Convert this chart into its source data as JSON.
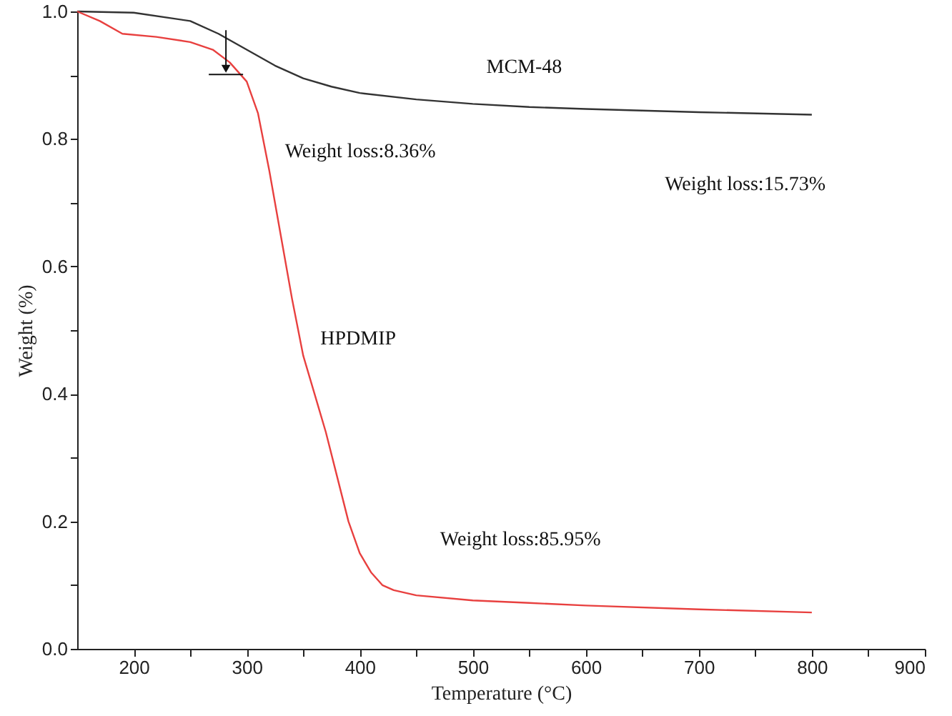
{
  "chart_data": {
    "type": "line",
    "xlabel": "Temperature (°C)",
    "ylabel": "Weight (%)",
    "xlim": [
      150,
      900
    ],
    "ylim": [
      0,
      1
    ],
    "xticks": [
      200,
      {
        "value": 250,
        "label": null
      },
      300,
      {
        "value": 350,
        "label": null
      },
      400,
      {
        "value": 450,
        "label": null
      },
      500,
      {
        "value": 550,
        "label": null
      },
      600,
      {
        "value": 650,
        "label": null
      },
      700,
      {
        "value": 750,
        "label": null
      },
      800,
      {
        "value": 850,
        "label": null
      },
      900
    ],
    "yticks": [
      {
        "value": 0,
        "label": "0.0"
      },
      {
        "value": 0.1,
        "label": null
      },
      0.2,
      {
        "value": 0.3,
        "label": null
      },
      0.4,
      {
        "value": 0.5,
        "label": null
      },
      0.6,
      {
        "value": 0.7,
        "label": null
      },
      0.8,
      {
        "value": 0.9,
        "label": null
      },
      {
        "value": 1,
        "label": "1.0"
      }
    ],
    "grid": false,
    "legend": false,
    "marker": "none",
    "line_style": "solid",
    "series": [
      {
        "name": "MCM-48",
        "color": "#333333",
        "x": [
          150,
          200,
          250,
          275,
          300,
          325,
          350,
          375,
          400,
          450,
          500,
          550,
          600,
          700,
          800
        ],
        "values": [
          1.0,
          0.998,
          0.985,
          0.965,
          0.94,
          0.915,
          0.895,
          0.882,
          0.872,
          0.862,
          0.855,
          0.85,
          0.847,
          0.842,
          0.838
        ]
      },
      {
        "name": "HPDMIP",
        "color": "#e8403f",
        "x": [
          150,
          170,
          190,
          220,
          250,
          270,
          285,
          300,
          310,
          320,
          330,
          340,
          350,
          360,
          370,
          380,
          390,
          400,
          410,
          420,
          430,
          450,
          500,
          550,
          600,
          700,
          800
        ],
        "values": [
          1.0,
          0.985,
          0.965,
          0.96,
          0.952,
          0.94,
          0.92,
          0.89,
          0.84,
          0.75,
          0.65,
          0.55,
          0.46,
          0.4,
          0.34,
          0.27,
          0.2,
          0.15,
          0.12,
          0.1,
          0.092,
          0.084,
          0.076,
          0.072,
          0.068,
          0.062,
          0.057
        ]
      }
    ],
    "annotations": [
      "Weight loss:8.36%",
      "Weight loss:15.73%",
      "Weight loss:85.95%"
    ]
  }
}
